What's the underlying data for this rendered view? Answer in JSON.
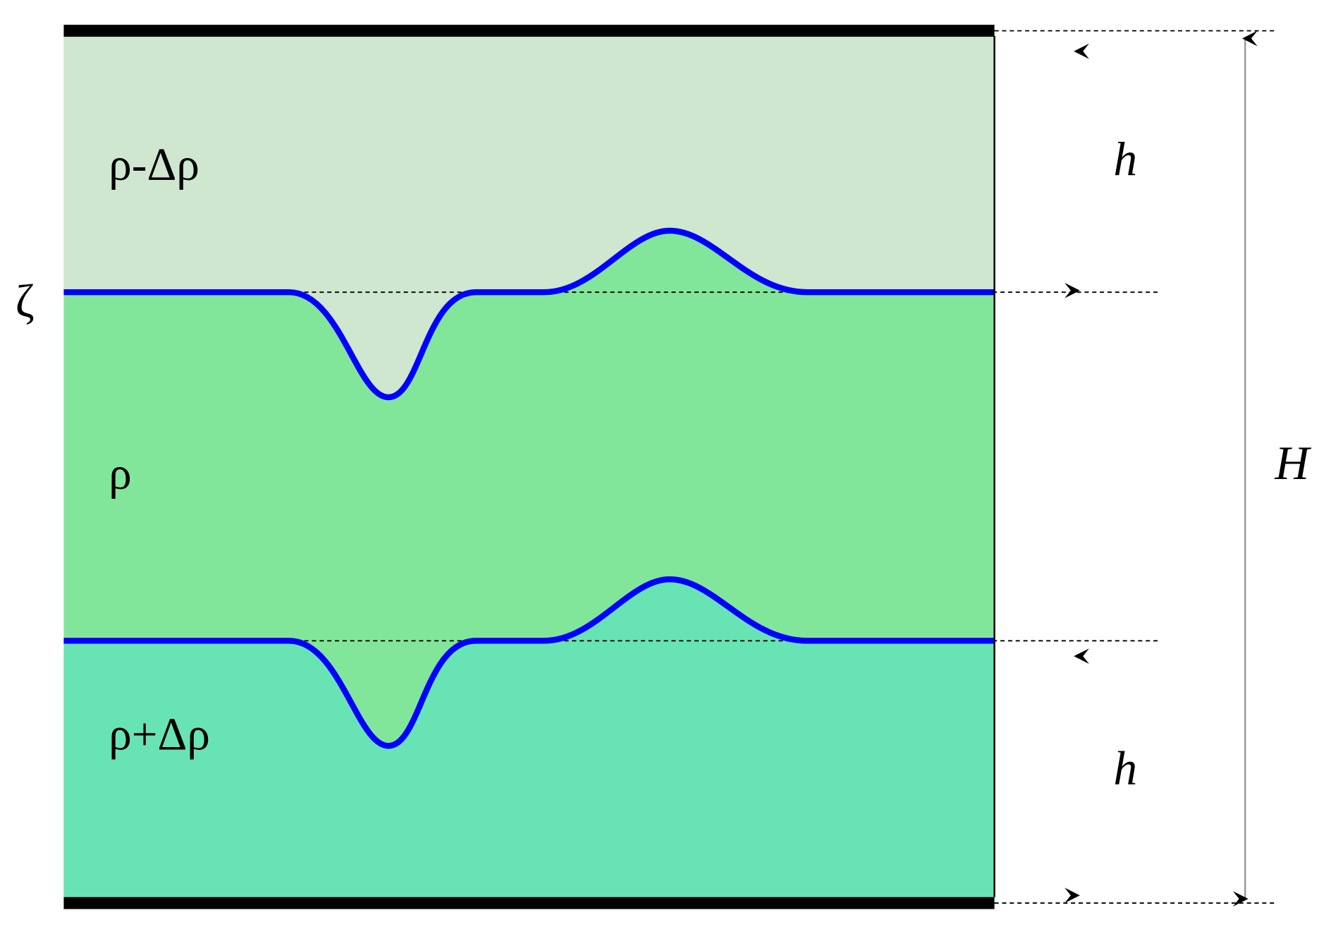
{
  "layers": [
    {
      "label": "ρ-Δρ"
    },
    {
      "label": "ρ"
    },
    {
      "label": "ρ+Δρ"
    }
  ],
  "interface_label": "ζ",
  "dimensions": {
    "upper": "h",
    "lower": "h",
    "total": "H"
  }
}
